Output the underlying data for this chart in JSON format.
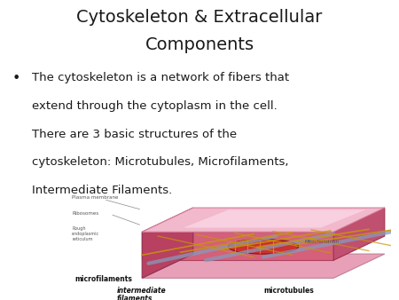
{
  "title_line1": "Cytoskeleton & Extracellular",
  "title_line2": "Components",
  "title_fontsize": 14,
  "title_color": "#1a1a1a",
  "bullet_lines": [
    "The cytoskeleton is a network of fibers that",
    "extend through the cytoplasm in the cell.",
    "There are 3 basic structures of the",
    "cytoskeleton: Microtubules, Microfilaments,",
    "Intermediate Filaments."
  ],
  "bullet_fontsize": 9.5,
  "bullet_color": "#1a1a1a",
  "background_color": "#ffffff",
  "font_family": "DejaVu Sans",
  "figsize": [
    4.5,
    3.38
  ],
  "dpi": 100
}
